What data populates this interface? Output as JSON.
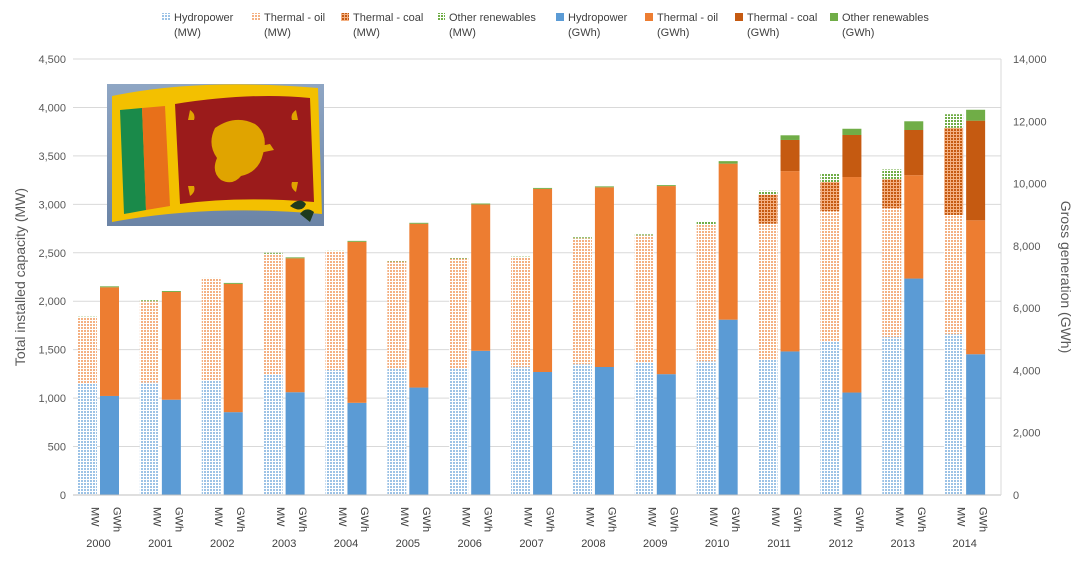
{
  "chart_data": {
    "type": "bar",
    "subtype": "stacked-paired-columns",
    "title": "",
    "ylabel_left": "Total installed capacity (MW)",
    "ylabel_right": "Gross generation (GWh)",
    "ylim_left": [
      0,
      4500
    ],
    "yticks_left": [
      "0",
      "500",
      "1,000",
      "1,500",
      "2,000",
      "2,500",
      "3,000",
      "3,500",
      "4,000",
      "4,500"
    ],
    "ylim_right": [
      0,
      14000
    ],
    "yticks_right": [
      "0",
      "2,000",
      "4,000",
      "6,000",
      "8,000",
      "10,000",
      "12,000",
      "14,000"
    ],
    "grid": true,
    "legend_position": "top",
    "categories": [
      "2000",
      "2001",
      "2002",
      "2003",
      "2004",
      "2005",
      "2006",
      "2007",
      "2008",
      "2009",
      "2010",
      "2011",
      "2012",
      "2013",
      "2014"
    ],
    "bar_labels": {
      "mw": "MW",
      "gwh": "GWh"
    },
    "series_mw": [
      {
        "name": "Hydropower",
        "unit": "(MW)",
        "color": "#9dc3e6",
        "pattern": "dots",
        "values": [
          1150,
          1160,
          1180,
          1240,
          1290,
          1300,
          1310,
          1320,
          1350,
          1370,
          1380,
          1400,
          1590,
          1630,
          1660
        ]
      },
      {
        "name": "Thermal - oil",
        "unit": "(MW)",
        "color": "#f4b183",
        "pattern": "dots",
        "values": [
          680,
          840,
          1050,
          1250,
          1220,
          1110,
          1130,
          1130,
          1300,
          1310,
          1410,
          1400,
          1340,
          1330,
          1230
        ]
      },
      {
        "name": "Thermal - coal",
        "unit": "(MW)",
        "color": "#c55a11",
        "pattern": "dots",
        "values": [
          0,
          0,
          0,
          0,
          0,
          0,
          0,
          0,
          0,
          0,
          0,
          300,
          300,
          300,
          900
        ]
      },
      {
        "name": "Other renewables",
        "unit": "(MW)",
        "color": "#a9d18e",
        "pattern": "dots",
        "values": [
          10,
          10,
          10,
          10,
          10,
          10,
          10,
          10,
          10,
          10,
          30,
          40,
          90,
          100,
          140
        ]
      }
    ],
    "series_gwh": [
      {
        "name": "Hydropower",
        "unit": "(GWh)",
        "color": "#5b9bd5",
        "values": [
          3180,
          3060,
          2660,
          3300,
          2960,
          3450,
          4630,
          3950,
          4110,
          3880,
          5630,
          4610,
          3290,
          6950,
          4520
        ]
      },
      {
        "name": "Thermal - oil",
        "unit": "(GWh)",
        "color": "#ed7d31",
        "values": [
          3490,
          3460,
          4120,
          4300,
          5170,
          5260,
          4700,
          5880,
          5770,
          6040,
          5010,
          5790,
          6920,
          3320,
          4300
        ]
      },
      {
        "name": "Thermal - coal",
        "unit": "(GWh)",
        "color": "#c55a11",
        "values": [
          0,
          0,
          0,
          0,
          0,
          0,
          0,
          0,
          0,
          0,
          0,
          1000,
          1350,
          1450,
          3200
        ]
      },
      {
        "name": "Other renewables",
        "unit": "(GWh)",
        "color": "#70ad47",
        "values": [
          30,
          30,
          30,
          30,
          30,
          30,
          30,
          30,
          30,
          30,
          80,
          150,
          200,
          280,
          350
        ]
      }
    ]
  },
  "colors": {
    "gridline": "#d9d9d9",
    "axis_text": "#595959",
    "flag_photo": "sri-lanka-flag-photo"
  }
}
